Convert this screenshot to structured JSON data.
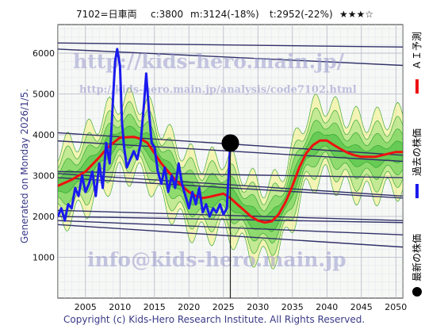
{
  "header": {
    "code_name": "7102=日車両",
    "current": "c:3800",
    "mid": "m:3124(-18%)",
    "target": "t:2952(-22%)",
    "rating": "★★★☆"
  },
  "watermarks": {
    "site": "http://kids-hero.main.jp/",
    "page": "http://kids-hero.main.jp/analysis/code7102.html",
    "email": "info@kids-hero.main.jp"
  },
  "side_note": "Generated on Monday 2026/1/5.",
  "footer": "Copyright (c) Kids-Hero Research Institute. All Rights Reserved.",
  "legend": [
    {
      "label": "ＡＩ予測",
      "color": "#ee1111",
      "marker": "line"
    },
    {
      "label": "過去の株価",
      "color": "#1a1aee",
      "marker": "line"
    },
    {
      "label": "最新の株価",
      "color": "#000000",
      "marker": "dot"
    }
  ],
  "chart_data": {
    "type": "line",
    "xlim": [
      2001,
      2051
    ],
    "ylim": [
      0,
      6700
    ],
    "x_ticks": [
      2005,
      2010,
      2015,
      2020,
      2025,
      2030,
      2035,
      2040,
      2045,
      2050
    ],
    "y_ticks": [
      1000,
      2000,
      3000,
      4000,
      5000,
      6000
    ],
    "grid": true,
    "latest_point": {
      "x": 2026,
      "y": 3800
    },
    "series": [
      {
        "name": "過去の株価",
        "color": "#1a1aee",
        "x": [
          2001.0,
          2001.5,
          2002.0,
          2002.5,
          2003.0,
          2003.5,
          2004.0,
          2004.5,
          2005.0,
          2005.5,
          2006.0,
          2006.5,
          2007.0,
          2007.5,
          2008.0,
          2008.5,
          2009.0,
          2009.3,
          2009.6,
          2010.0,
          2010.3,
          2010.6,
          2011.0,
          2011.5,
          2012.0,
          2012.5,
          2013.0,
          2013.5,
          2013.8,
          2014.2,
          2014.6,
          2015.0,
          2015.5,
          2016.0,
          2016.5,
          2017.0,
          2017.5,
          2018.0,
          2018.5,
          2019.0,
          2019.5,
          2020.0,
          2020.5,
          2021.0,
          2021.5,
          2022.0,
          2022.5,
          2023.0,
          2023.5,
          2024.0,
          2024.5,
          2025.0,
          2025.5,
          2026.0
        ],
        "values": [
          2000,
          2200,
          1900,
          2300,
          2200,
          2700,
          2500,
          3000,
          2600,
          2800,
          3100,
          2500,
          3300,
          2700,
          3800,
          3300,
          4900,
          5800,
          6100,
          5700,
          4300,
          3700,
          3200,
          3400,
          3600,
          3400,
          3800,
          4800,
          5500,
          4600,
          3800,
          3700,
          3100,
          2800,
          3200,
          2600,
          3000,
          2700,
          3300,
          2800,
          2500,
          2200,
          2600,
          2300,
          2700,
          2100,
          2300,
          2000,
          2200,
          2100,
          2300,
          2050,
          2200,
          3800
        ]
      },
      {
        "name": "ＡＩ予測",
        "color": "#ee1111",
        "x": [
          2001,
          2003,
          2005,
          2007,
          2008,
          2009,
          2010,
          2012,
          2013,
          2014,
          2015,
          2016,
          2017,
          2018,
          2019,
          2020,
          2021,
          2022,
          2023,
          2024,
          2025,
          2026,
          2027,
          2028,
          2029,
          2030,
          2031,
          2032,
          2033,
          2034,
          2035,
          2036,
          2037,
          2038,
          2039,
          2040,
          2041,
          2042,
          2043,
          2044,
          2045,
          2046,
          2047,
          2048,
          2049,
          2050,
          2051
        ],
        "values": [
          2750,
          2900,
          3100,
          3450,
          3650,
          3800,
          3930,
          3950,
          3900,
          3800,
          3550,
          3300,
          3100,
          2900,
          2750,
          2600,
          2500,
          2450,
          2480,
          2520,
          2560,
          2450,
          2300,
          2150,
          2000,
          1900,
          1850,
          1880,
          2050,
          2350,
          2750,
          3200,
          3550,
          3750,
          3860,
          3860,
          3750,
          3650,
          3560,
          3500,
          3460,
          3460,
          3460,
          3500,
          3540,
          3580,
          3580
        ]
      }
    ]
  }
}
